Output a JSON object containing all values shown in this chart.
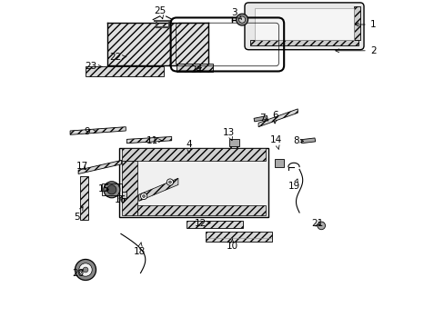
{
  "bg_color": "#ffffff",
  "line_color": "#000000",
  "parts_labels": [
    [
      1,
      0.96,
      0.925,
      0.895,
      0.925
    ],
    [
      2,
      0.96,
      0.845,
      0.835,
      0.845
    ],
    [
      3,
      0.536,
      0.962,
      0.56,
      0.94
    ],
    [
      4,
      0.398,
      0.558,
      0.398,
      0.53
    ],
    [
      5,
      0.055,
      0.335,
      0.075,
      0.37
    ],
    [
      6,
      0.66,
      0.648,
      0.66,
      0.62
    ],
    [
      7,
      0.622,
      0.638,
      0.642,
      0.63
    ],
    [
      8,
      0.726,
      0.57,
      0.75,
      0.568
    ],
    [
      9,
      0.087,
      0.598,
      0.118,
      0.598
    ],
    [
      10,
      0.53,
      0.248,
      0.53,
      0.27
    ],
    [
      11,
      0.285,
      0.57,
      0.318,
      0.57
    ],
    [
      12,
      0.434,
      0.318,
      0.465,
      0.318
    ],
    [
      13,
      0.52,
      0.595,
      0.53,
      0.568
    ],
    [
      14,
      0.664,
      0.572,
      0.672,
      0.542
    ],
    [
      15,
      0.138,
      0.422,
      0.162,
      0.418
    ],
    [
      16,
      0.188,
      0.39,
      0.202,
      0.406
    ],
    [
      17,
      0.072,
      0.492,
      0.09,
      0.474
    ],
    [
      18,
      0.246,
      0.23,
      0.252,
      0.26
    ],
    [
      19,
      0.72,
      0.43,
      0.73,
      0.455
    ],
    [
      20,
      0.06,
      0.165,
      0.082,
      0.182
    ],
    [
      21,
      0.79,
      0.318,
      0.8,
      0.31
    ],
    [
      22,
      0.172,
      0.826,
      0.215,
      0.826
    ],
    [
      23,
      0.098,
      0.796,
      0.142,
      0.796
    ],
    [
      24,
      0.42,
      0.786,
      0.445,
      0.798
    ],
    [
      25,
      0.31,
      0.968,
      0.318,
      0.94
    ]
  ]
}
